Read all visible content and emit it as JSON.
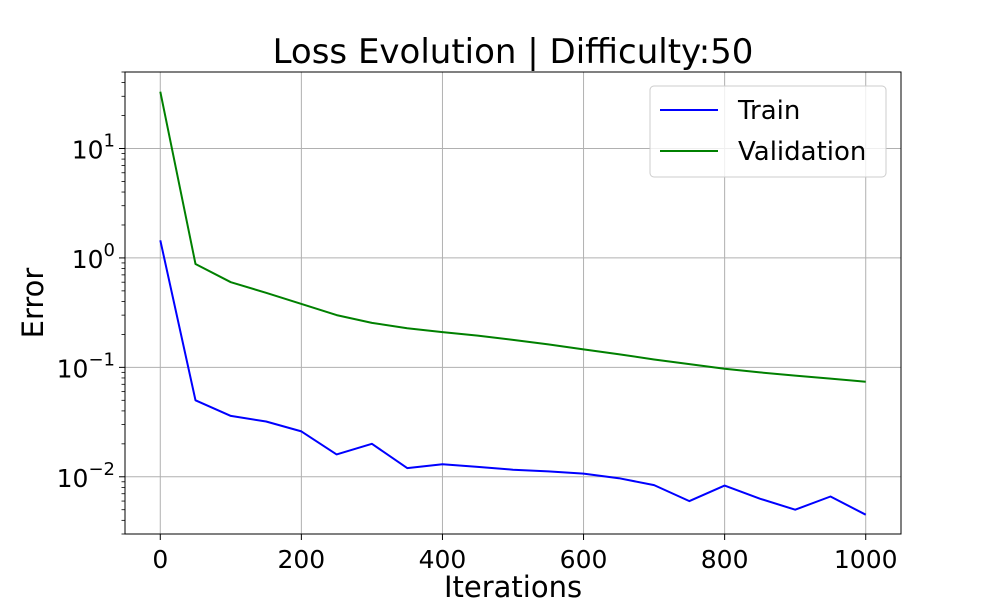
{
  "chart_data": {
    "type": "line",
    "title": "Loss Evolution | Difficulty:50",
    "xlabel": "Iterations",
    "ylabel": "Error",
    "yscale": "log",
    "grid": true,
    "legend_position": "top-right",
    "xlim": [
      -50,
      1050
    ],
    "ylim": [
      0.003,
      50
    ],
    "x_ticks": [
      {
        "value": 0,
        "label": "0"
      },
      {
        "value": 200,
        "label": "200"
      },
      {
        "value": 400,
        "label": "400"
      },
      {
        "value": 600,
        "label": "600"
      },
      {
        "value": 800,
        "label": "800"
      },
      {
        "value": 1000,
        "label": "1000"
      }
    ],
    "y_ticks": [
      {
        "value": 0.01,
        "base": "10",
        "exp": "−2"
      },
      {
        "value": 0.1,
        "base": "10",
        "exp": "−1"
      },
      {
        "value": 1,
        "base": "10",
        "exp": "0"
      },
      {
        "value": 10,
        "base": "10",
        "exp": "1"
      }
    ],
    "x": [
      0,
      50,
      100,
      150,
      200,
      250,
      300,
      350,
      400,
      450,
      500,
      550,
      600,
      650,
      700,
      750,
      800,
      850,
      900,
      950,
      1000
    ],
    "series": [
      {
        "name": "Train",
        "color": "#0000ff",
        "values": [
          1.45,
          0.05,
          0.036,
          0.032,
          0.026,
          0.016,
          0.02,
          0.012,
          0.013,
          0.0123,
          0.0116,
          0.0112,
          0.0107,
          0.0097,
          0.0084,
          0.006,
          0.0083,
          0.0063,
          0.005,
          0.0066,
          0.0045
        ]
      },
      {
        "name": "Validation",
        "color": "#008000",
        "values": [
          33.0,
          0.88,
          0.6,
          0.48,
          0.38,
          0.3,
          0.255,
          0.228,
          0.21,
          0.195,
          0.178,
          0.162,
          0.146,
          0.132,
          0.118,
          0.107,
          0.097,
          0.09,
          0.084,
          0.079,
          0.074
        ]
      }
    ]
  }
}
